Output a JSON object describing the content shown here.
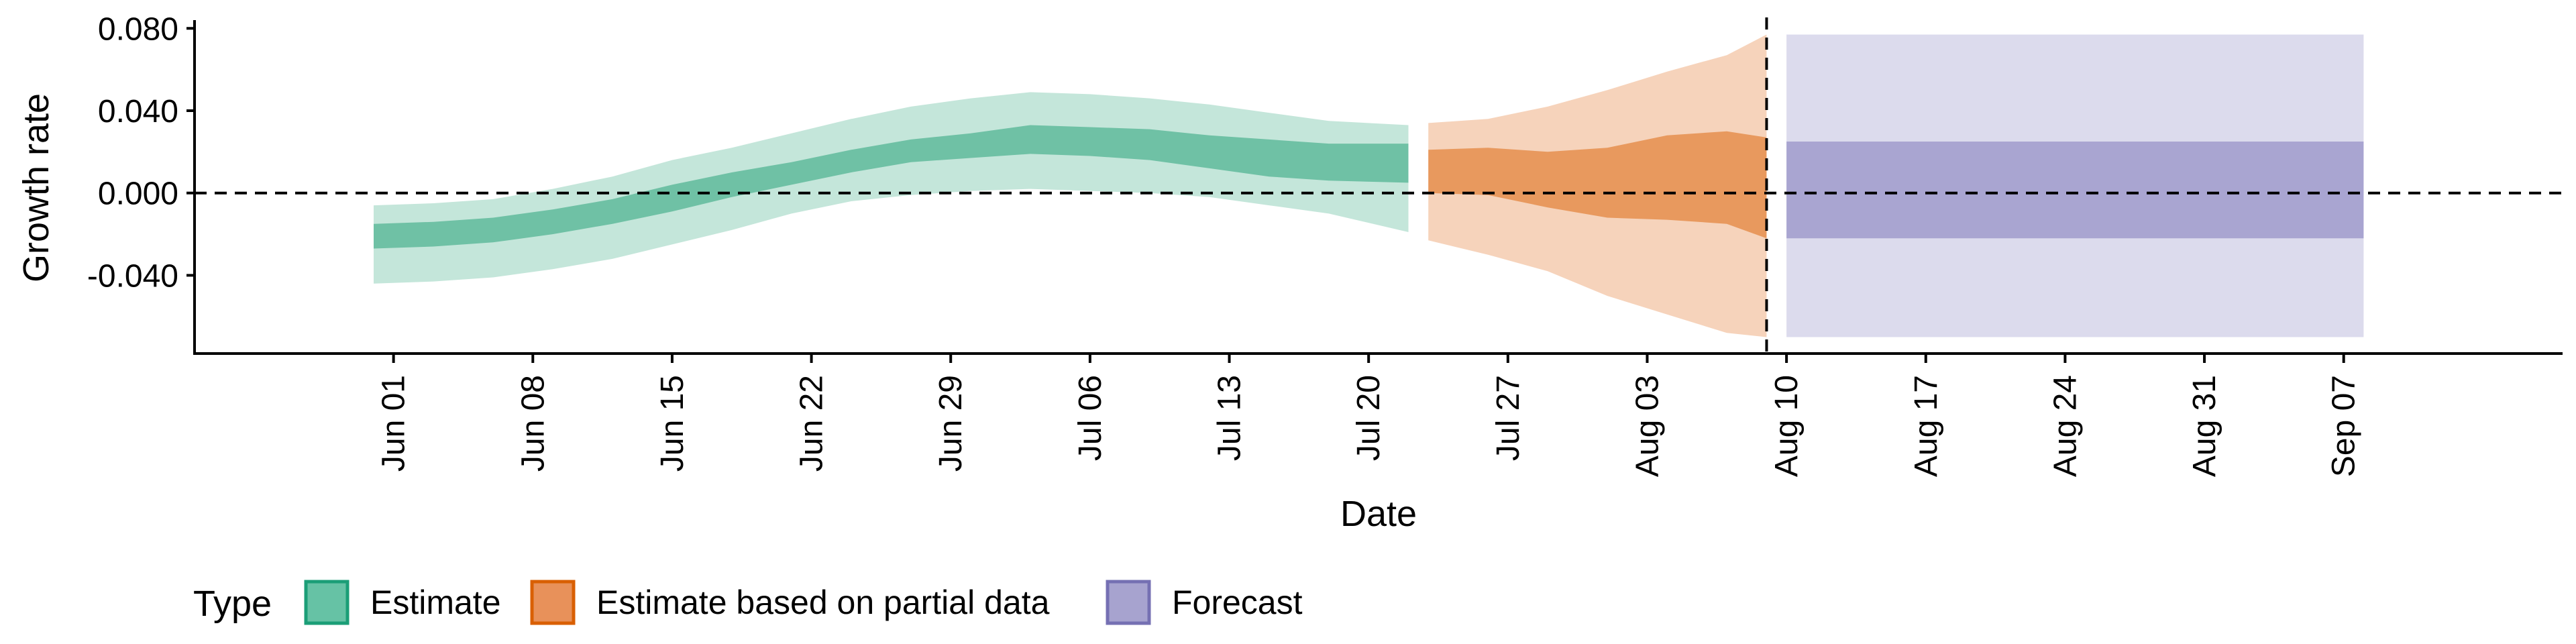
{
  "chart_data": {
    "type": "area",
    "title": "",
    "xlabel": "Date",
    "ylabel": "Growth rate",
    "x_axis": {
      "type": "date",
      "range": [
        "2021-05-22",
        "2021-09-18"
      ],
      "ticks": [
        {
          "date": "2021-06-01",
          "label": "Jun 01"
        },
        {
          "date": "2021-06-08",
          "label": "Jun 08"
        },
        {
          "date": "2021-06-15",
          "label": "Jun 15"
        },
        {
          "date": "2021-06-22",
          "label": "Jun 22"
        },
        {
          "date": "2021-06-29",
          "label": "Jun 29"
        },
        {
          "date": "2021-07-06",
          "label": "Jul 06"
        },
        {
          "date": "2021-07-13",
          "label": "Jul 13"
        },
        {
          "date": "2021-07-20",
          "label": "Jul 20"
        },
        {
          "date": "2021-07-27",
          "label": "Jul 27"
        },
        {
          "date": "2021-08-03",
          "label": "Aug 03"
        },
        {
          "date": "2021-08-10",
          "label": "Aug 10"
        },
        {
          "date": "2021-08-17",
          "label": "Aug 17"
        },
        {
          "date": "2021-08-24",
          "label": "Aug 24"
        },
        {
          "date": "2021-08-31",
          "label": "Aug 31"
        },
        {
          "date": "2021-09-07",
          "label": "Sep 07"
        }
      ]
    },
    "y_axis": {
      "range": [
        -0.078,
        0.084
      ],
      "ticks": [
        {
          "value": -0.04,
          "label": "-0.040"
        },
        {
          "value": 0.0,
          "label": "0.000"
        },
        {
          "value": 0.04,
          "label": "0.040"
        },
        {
          "value": 0.08,
          "label": "0.080"
        }
      ]
    },
    "reference_lines": {
      "horizontal_y": 0.0,
      "vertical_date": "2021-08-09"
    },
    "grid": false,
    "legend": {
      "title": "Type",
      "position": "bottom-left",
      "entries": [
        {
          "label": "Estimate",
          "fill": "#66c2a5",
          "border": "#1b9e77"
        },
        {
          "label": "Estimate based on partial data",
          "fill": "#e8915a",
          "border": "#d95f02"
        },
        {
          "label": "Forecast",
          "fill": "#a7a3cf",
          "border": "#7570b3"
        }
      ]
    },
    "series": [
      {
        "name": "Estimate",
        "color": "#1b9e77",
        "inner_color": "#6fc1a5",
        "outer_color": "#c4e6da",
        "points": [
          {
            "date": "2021-05-31",
            "lo90": -0.044,
            "lo50": -0.027,
            "hi50": -0.015,
            "hi90": -0.006
          },
          {
            "date": "2021-06-03",
            "lo90": -0.043,
            "lo50": -0.026,
            "hi50": -0.014,
            "hi90": -0.005
          },
          {
            "date": "2021-06-06",
            "lo90": -0.041,
            "lo50": -0.024,
            "hi50": -0.012,
            "hi90": -0.003
          },
          {
            "date": "2021-06-09",
            "lo90": -0.037,
            "lo50": -0.02,
            "hi50": -0.008,
            "hi90": 0.002
          },
          {
            "date": "2021-06-12",
            "lo90": -0.032,
            "lo50": -0.015,
            "hi50": -0.003,
            "hi90": 0.008
          },
          {
            "date": "2021-06-15",
            "lo90": -0.025,
            "lo50": -0.009,
            "hi50": 0.004,
            "hi90": 0.016
          },
          {
            "date": "2021-06-18",
            "lo90": -0.018,
            "lo50": -0.002,
            "hi50": 0.01,
            "hi90": 0.022
          },
          {
            "date": "2021-06-21",
            "lo90": -0.01,
            "lo50": 0.004,
            "hi50": 0.015,
            "hi90": 0.029
          },
          {
            "date": "2021-06-24",
            "lo90": -0.004,
            "lo50": 0.01,
            "hi50": 0.021,
            "hi90": 0.036
          },
          {
            "date": "2021-06-27",
            "lo90": -0.001,
            "lo50": 0.015,
            "hi50": 0.026,
            "hi90": 0.042
          },
          {
            "date": "2021-06-30",
            "lo90": 0.001,
            "lo50": 0.017,
            "hi50": 0.029,
            "hi90": 0.046
          },
          {
            "date": "2021-07-03",
            "lo90": 0.002,
            "lo50": 0.019,
            "hi50": 0.033,
            "hi90": 0.049
          },
          {
            "date": "2021-07-06",
            "lo90": 0.001,
            "lo50": 0.018,
            "hi50": 0.032,
            "hi90": 0.048
          },
          {
            "date": "2021-07-09",
            "lo90": 0.0,
            "lo50": 0.016,
            "hi50": 0.031,
            "hi90": 0.046
          },
          {
            "date": "2021-07-12",
            "lo90": -0.002,
            "lo50": 0.012,
            "hi50": 0.028,
            "hi90": 0.043
          },
          {
            "date": "2021-07-15",
            "lo90": -0.006,
            "lo50": 0.008,
            "hi50": 0.026,
            "hi90": 0.039
          },
          {
            "date": "2021-07-18",
            "lo90": -0.01,
            "lo50": 0.006,
            "hi50": 0.024,
            "hi90": 0.035
          },
          {
            "date": "2021-07-22",
            "lo90": -0.019,
            "lo50": 0.005,
            "hi50": 0.024,
            "hi90": 0.033
          }
        ]
      },
      {
        "name": "Estimate based on partial data",
        "color": "#d95f02",
        "inner_color": "#e8995e",
        "outer_color": "#f6d3bb",
        "points": [
          {
            "date": "2021-07-23",
            "lo90": -0.023,
            "lo50": 0.0,
            "hi50": 0.021,
            "hi90": 0.034
          },
          {
            "date": "2021-07-26",
            "lo90": -0.03,
            "lo50": -0.001,
            "hi50": 0.022,
            "hi90": 0.036
          },
          {
            "date": "2021-07-29",
            "lo90": -0.038,
            "lo50": -0.007,
            "hi50": 0.02,
            "hi90": 0.042
          },
          {
            "date": "2021-08-01",
            "lo90": -0.05,
            "lo50": -0.012,
            "hi50": 0.022,
            "hi90": 0.05
          },
          {
            "date": "2021-08-04",
            "lo90": -0.059,
            "lo50": -0.013,
            "hi50": 0.028,
            "hi90": 0.059
          },
          {
            "date": "2021-08-07",
            "lo90": -0.068,
            "lo50": -0.015,
            "hi50": 0.03,
            "hi90": 0.067
          },
          {
            "date": "2021-08-09",
            "lo90": -0.07,
            "lo50": -0.022,
            "hi50": 0.027,
            "hi90": 0.077
          }
        ]
      },
      {
        "name": "Forecast",
        "color": "#7570b3",
        "inner_color": "#a9a5d1",
        "outer_color": "#dcdbed",
        "points": [
          {
            "date": "2021-08-10",
            "lo90": -0.07,
            "lo50": -0.022,
            "hi50": 0.025,
            "hi90": 0.077
          },
          {
            "date": "2021-09-08",
            "lo90": -0.07,
            "lo50": -0.022,
            "hi50": 0.025,
            "hi90": 0.077
          }
        ]
      }
    ]
  }
}
